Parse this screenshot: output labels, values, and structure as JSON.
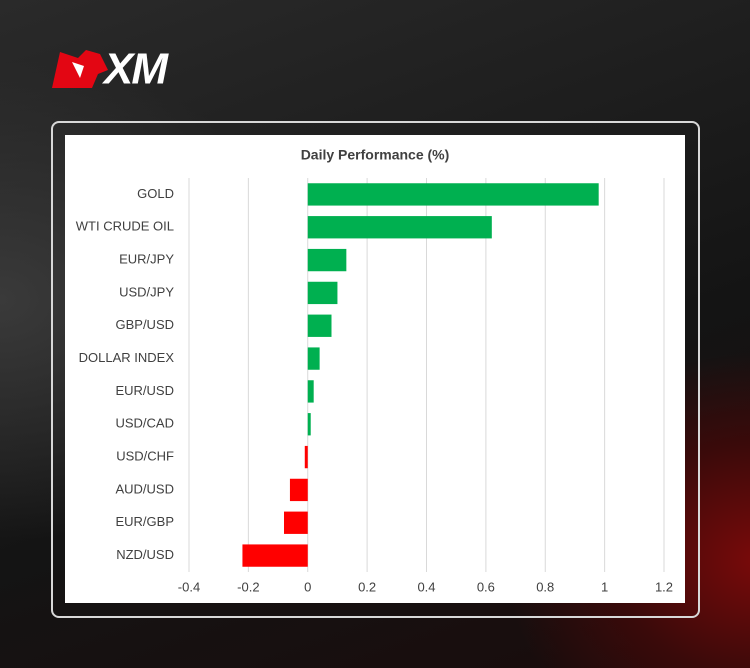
{
  "logo": "XM",
  "chart_data": {
    "type": "bar",
    "orientation": "horizontal",
    "title": "Daily Performance (%)",
    "categories": [
      "GOLD",
      "WTI CRUDE OIL",
      "EUR/JPY",
      "USD/JPY",
      "GBP/USD",
      "DOLLAR INDEX",
      "EUR/USD",
      "USD/CAD",
      "USD/CHF",
      "AUD/USD",
      "EUR/GBP",
      "NZD/USD"
    ],
    "values": [
      0.98,
      0.62,
      0.13,
      0.1,
      0.08,
      0.04,
      0.02,
      0.01,
      -0.01,
      -0.06,
      -0.08,
      -0.22
    ],
    "positive_color": "#00b050",
    "negative_color": "#ff0000",
    "xlim": [
      -0.4,
      1.2
    ],
    "xticks": [
      -0.4,
      -0.2,
      0,
      0.2,
      0.4,
      0.6,
      0.8,
      1,
      1.2
    ],
    "grid": true
  }
}
